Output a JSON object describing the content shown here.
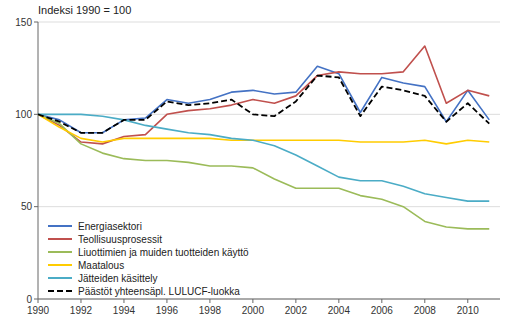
{
  "chart_data": {
    "type": "line",
    "title": "Indeksi 1990 = 100",
    "x": [
      1990,
      1991,
      1992,
      1993,
      1994,
      1995,
      1996,
      1997,
      1998,
      1999,
      2000,
      2001,
      2002,
      2003,
      2004,
      2005,
      2006,
      2007,
      2008,
      2009,
      2010,
      2011
    ],
    "series": [
      {
        "name": "Energiasektori",
        "color": "#4472C4",
        "values": [
          100,
          97,
          90,
          90,
          97,
          98,
          108,
          106,
          108,
          112,
          113,
          111,
          112,
          126,
          122,
          101,
          120,
          117,
          115,
          96,
          113,
          97
        ]
      },
      {
        "name": "Teollisuusprosessit",
        "color": "#C0504D",
        "values": [
          100,
          94,
          85,
          84,
          88,
          89,
          100,
          102,
          103,
          105,
          108,
          106,
          110,
          121,
          123,
          122,
          122,
          123,
          137,
          106,
          113,
          110
        ]
      },
      {
        "name": "Liuottimien ja muiden tuotteiden käyttö",
        "color": "#9BBB59",
        "values": [
          100,
          95,
          84,
          79,
          76,
          75,
          75,
          74,
          72,
          72,
          71,
          65,
          60,
          60,
          60,
          56,
          54,
          50,
          42,
          39,
          38,
          38
        ]
      },
      {
        "name": "Maatalous",
        "color": "#FFCC00",
        "values": [
          100,
          93,
          87,
          85,
          87,
          87,
          87,
          87,
          87,
          86,
          86,
          86,
          86,
          86,
          86,
          85,
          85,
          85,
          86,
          84,
          86,
          85
        ]
      },
      {
        "name": "Jätteiden käsittely",
        "color": "#4BACC6",
        "values": [
          100,
          100,
          100,
          99,
          97,
          94,
          92,
          90,
          89,
          87,
          86,
          83,
          78,
          72,
          66,
          64,
          64,
          61,
          57,
          55,
          53,
          53
        ]
      },
      {
        "name": "Päästöt yhteensäpl. LULUCF-luokka",
        "color": "#000000",
        "line_style": "dashed",
        "values": [
          100,
          96,
          90,
          90,
          97,
          97,
          107,
          105,
          106,
          108,
          100,
          99,
          107,
          121,
          120,
          99,
          115,
          113,
          110,
          96,
          106,
          95
        ]
      }
    ],
    "xlim": [
      1990,
      2011.5
    ],
    "xticks": [
      1990,
      1992,
      1994,
      1996,
      1998,
      2000,
      2002,
      2004,
      2006,
      2008,
      2010
    ],
    "ylim": [
      0,
      150
    ],
    "yticks": [
      0,
      50,
      100,
      150
    ],
    "grid": true,
    "legend": "lower left"
  }
}
